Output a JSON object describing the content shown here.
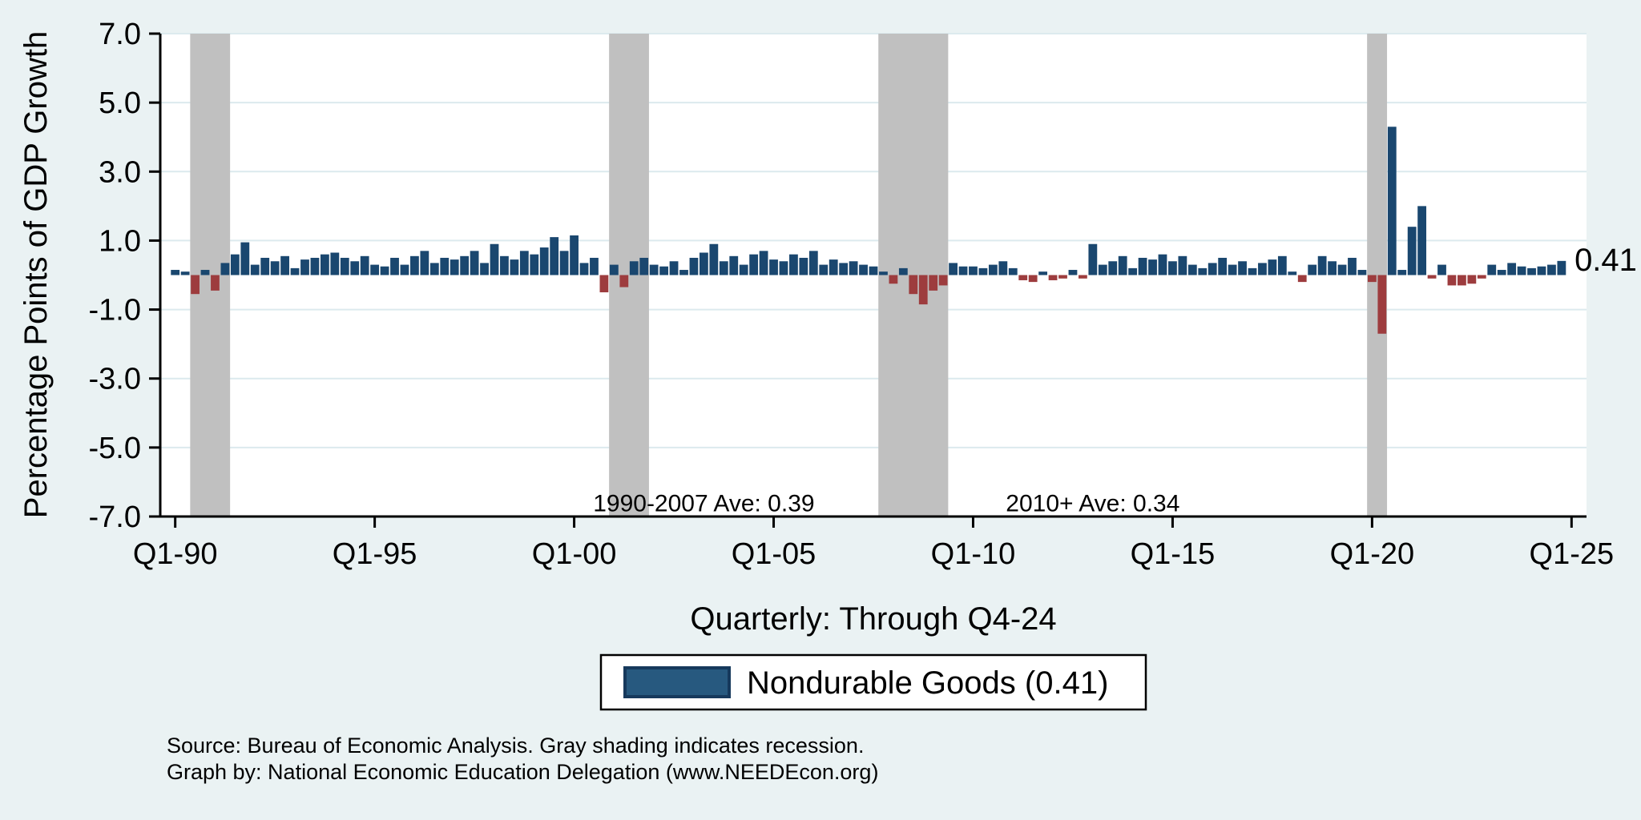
{
  "chart_data": {
    "type": "bar",
    "title": "",
    "ylabel": "Percentage Points of GDP Growth",
    "xlabel": "Quarterly: Through Q4-24",
    "ylim": [
      -7.0,
      7.0
    ],
    "grid": true,
    "y_ticks": [
      7.0,
      5.0,
      3.0,
      1.0,
      -1.0,
      -3.0,
      -5.0,
      -7.0
    ],
    "y_tick_labels": [
      "7.0",
      "5.0",
      "3.0",
      "1.0",
      "-1.0",
      "-3.0",
      "-5.0",
      "-7.0"
    ],
    "x_tick_indices": [
      0,
      20,
      40,
      60,
      80,
      100,
      120,
      140
    ],
    "x_tick_labels": [
      "Q1-90",
      "Q1-95",
      "Q1-00",
      "Q1-05",
      "Q1-10",
      "Q1-15",
      "Q1-20",
      "Q1-25"
    ],
    "quarters_start": "1990Q1",
    "quarters_end": "2024Q4",
    "series": [
      {
        "name": "Nondurable Goods",
        "values": [
          0.15,
          0.1,
          -0.55,
          0.15,
          -0.45,
          0.35,
          0.6,
          0.95,
          0.3,
          0.5,
          0.4,
          0.55,
          0.2,
          0.45,
          0.5,
          0.6,
          0.65,
          0.5,
          0.4,
          0.55,
          0.3,
          0.25,
          0.5,
          0.3,
          0.55,
          0.7,
          0.35,
          0.5,
          0.45,
          0.55,
          0.7,
          0.35,
          0.9,
          0.55,
          0.45,
          0.7,
          0.6,
          0.8,
          1.1,
          0.7,
          1.15,
          0.35,
          0.5,
          -0.5,
          0.3,
          -0.35,
          0.4,
          0.5,
          0.3,
          0.25,
          0.4,
          0.15,
          0.5,
          0.65,
          0.9,
          0.4,
          0.55,
          0.3,
          0.6,
          0.7,
          0.45,
          0.4,
          0.6,
          0.5,
          0.7,
          0.3,
          0.45,
          0.35,
          0.4,
          0.3,
          0.25,
          0.1,
          -0.25,
          0.2,
          -0.55,
          -0.85,
          -0.45,
          -0.3,
          0.35,
          0.25,
          0.25,
          0.2,
          0.3,
          0.4,
          0.2,
          -0.15,
          -0.2,
          0.1,
          -0.15,
          -0.1,
          0.15,
          -0.1,
          0.9,
          0.3,
          0.4,
          0.55,
          0.2,
          0.5,
          0.45,
          0.6,
          0.4,
          0.55,
          0.3,
          0.2,
          0.35,
          0.5,
          0.3,
          0.4,
          0.2,
          0.35,
          0.45,
          0.55,
          0.1,
          -0.2,
          0.3,
          0.55,
          0.4,
          0.3,
          0.5,
          0.15,
          -0.2,
          -1.7,
          4.3,
          0.15,
          1.4,
          2.0,
          -0.1,
          0.3,
          -0.3,
          -0.3,
          -0.25,
          -0.1,
          0.3,
          0.15,
          0.35,
          0.25,
          0.2,
          0.25,
          0.3,
          0.41
        ]
      }
    ],
    "recessions": [
      {
        "label": "1990-1991 recession",
        "start_index": 2,
        "end_index": 5
      },
      {
        "label": "2001 recession",
        "start_index": 44,
        "end_index": 47
      },
      {
        "label": "2007-2009 recession",
        "start_index": 71,
        "end_index": 77
      },
      {
        "label": "2020 recession",
        "start_index": 120,
        "end_index": 121
      }
    ],
    "annotations": [
      {
        "text": "1990-2007 Ave: 0.39",
        "x_index": 53,
        "y": -6.6,
        "size": 30,
        "anchor": "middle"
      },
      {
        "text": "2010+ Ave: 0.34",
        "x_index": 92,
        "y": -6.6,
        "size": 30,
        "anchor": "middle"
      },
      {
        "text": "0.41",
        "x_index": 140.3,
        "y": 0.45,
        "size": 40,
        "anchor": "start"
      }
    ],
    "colors": {
      "positive": "#1a476f",
      "negative": "#9d3c3e",
      "recession": "#c0c0c0",
      "background": "#eaf2f3",
      "plot_background": "#ffffff",
      "gridline": "#dceaee",
      "axis": "#000000"
    },
    "legend_position": "bottom-center"
  },
  "legend": {
    "items": [
      {
        "label": "Nondurable Goods (0.41)",
        "swatch_fill": "#27597f",
        "swatch_border": "#16395c"
      }
    ]
  },
  "footer": {
    "source_line1": "Source: Bureau of Economic Analysis. Gray shading indicates recession.",
    "source_line2": "Graph by: National Economic Education Delegation (www.NEEDEcon.org)"
  }
}
